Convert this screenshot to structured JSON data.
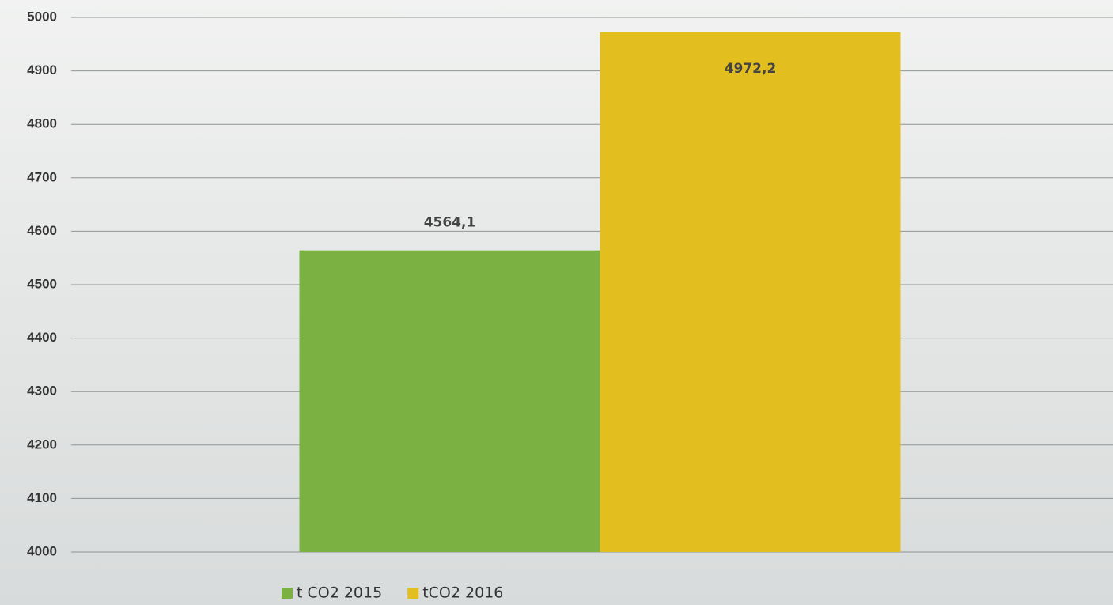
{
  "chart_data": {
    "type": "bar",
    "categories": [
      null
    ],
    "series": [
      {
        "name": "t CO2 2015",
        "color": "#7ab142",
        "values": [
          4564.1
        ],
        "value_labels": [
          "4564,1"
        ]
      },
      {
        "name": "tCO2 2016",
        "color": "#e2bf1e",
        "values": [
          4972.2
        ],
        "value_labels": [
          "4972,2"
        ]
      }
    ],
    "ylim": [
      4000,
      5000
    ],
    "yticks": [
      4000,
      4100,
      4200,
      4300,
      4400,
      4500,
      4600,
      4700,
      4800,
      4900,
      5000
    ],
    "grid": true,
    "legend": "bottom"
  }
}
